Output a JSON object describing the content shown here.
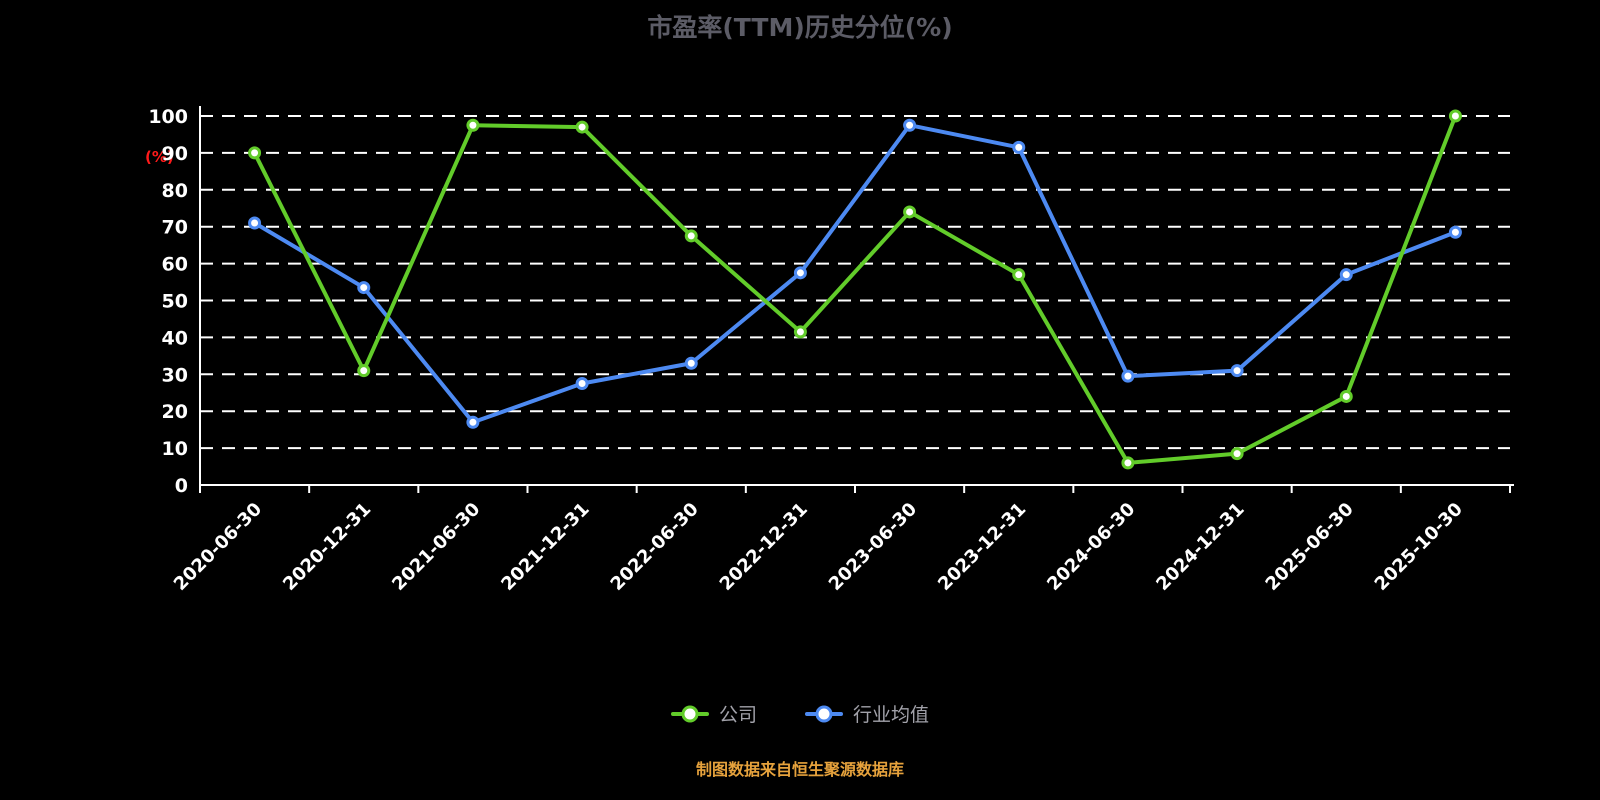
{
  "page": {
    "title": "市盈率(TTM)历史分位(%)",
    "footer": "制图数据来自恒生聚源数据库"
  },
  "colors": {
    "background": "#000000",
    "title": "#5c5c66",
    "axis": "#ffffff",
    "grid": "#ffffff",
    "tick_label": "#ffffff",
    "y_unit_label": "#ff1a1a",
    "legend_text": "#a2a2aa",
    "footer_text": "#e6a23c",
    "company_series": "#62cc2a",
    "industry_series": "#4d8af2"
  },
  "chart_data": {
    "type": "line",
    "title": "市盈率(TTM)历史分位(%)",
    "xlabel": "",
    "ylabel": "(%)",
    "ylim": [
      0,
      100
    ],
    "ytick_step": 10,
    "grid": true,
    "grid_style": "dashed",
    "legend_position": "bottom",
    "categories": [
      "2020-06-30",
      "2020-12-31",
      "2021-06-30",
      "2021-12-31",
      "2022-06-30",
      "2022-12-31",
      "2023-06-30",
      "2023-12-31",
      "2024-06-30",
      "2024-12-31",
      "2025-06-30",
      "2025-10-30"
    ],
    "series": [
      {
        "name": "公司",
        "color": "#62cc2a",
        "values": [
          90,
          31,
          97.5,
          97,
          67.5,
          41.5,
          74,
          57,
          6,
          8.5,
          24,
          100
        ]
      },
      {
        "name": "行业均值",
        "color": "#4d8af2",
        "values": [
          71,
          53.5,
          17,
          27.5,
          33,
          57.5,
          97.5,
          91.5,
          29.5,
          31,
          57,
          68.5
        ]
      }
    ]
  }
}
